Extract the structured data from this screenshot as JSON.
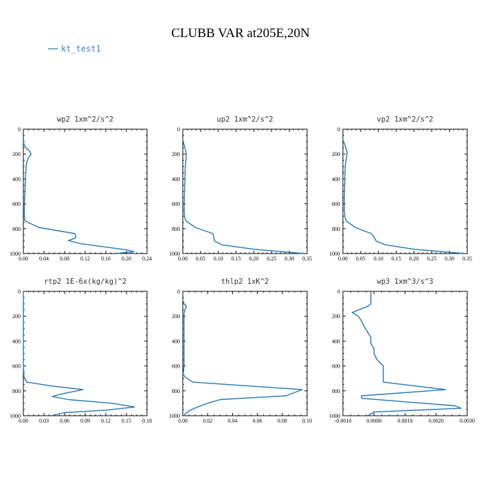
{
  "figure_title": "CLUBB VAR at205E,20N",
  "legend": {
    "label": "kt_test1",
    "color": "#3a86c8"
  },
  "series_color": "#1f77b4",
  "chart_data": [
    {
      "type": "line",
      "title": "wp2  1xm^2/s^2",
      "xlim": [
        0,
        0.24
      ],
      "xticks": [
        "0.00",
        "0.04",
        "0.08",
        "0.12",
        "0.16",
        "0.20",
        "0.24"
      ],
      "ylim": [
        1000,
        0
      ],
      "yticks": [
        "0",
        "200",
        "400",
        "600",
        "800",
        "1000"
      ],
      "x": [
        0.0,
        0.001,
        0.005,
        0.012,
        0.015,
        0.01,
        0.006,
        0.005,
        0.004,
        0.003,
        0.002,
        0.002,
        0.002,
        0.004,
        0.03,
        0.1,
        0.102,
        0.098,
        0.087,
        0.092,
        0.11,
        0.2,
        0.215,
        0.18
      ],
      "y": [
        100,
        120,
        150,
        175,
        200,
        230,
        270,
        330,
        400,
        500,
        600,
        680,
        720,
        740,
        790,
        840,
        870,
        880,
        895,
        900,
        920,
        970,
        985,
        1000
      ]
    },
    {
      "type": "line",
      "title": "up2  1xm^2/s^2",
      "xlim": [
        0,
        0.35
      ],
      "xticks": [
        "0.00",
        "0.05",
        "0.10",
        "0.15",
        "0.20",
        "0.25",
        "0.30",
        "0.35"
      ],
      "ylim": [
        1000,
        0
      ],
      "yticks": [
        "0",
        "200",
        "400",
        "600",
        "800",
        "1000"
      ],
      "x": [
        0.0,
        0.004,
        0.008,
        0.01,
        0.009,
        0.007,
        0.006,
        0.005,
        0.004,
        0.004,
        0.006,
        0.01,
        0.035,
        0.085,
        0.088,
        0.09,
        0.11,
        0.2,
        0.3,
        0.34
      ],
      "y": [
        90,
        130,
        170,
        200,
        240,
        300,
        400,
        500,
        600,
        680,
        720,
        740,
        790,
        840,
        880,
        900,
        930,
        965,
        990,
        1000
      ]
    },
    {
      "type": "line",
      "title": "vp2  1xm^2/s^2",
      "xlim": [
        0,
        0.35
      ],
      "xticks": [
        "0.00",
        "0.05",
        "0.10",
        "0.15",
        "0.20",
        "0.25",
        "0.30",
        "0.35"
      ],
      "ylim": [
        1000,
        0
      ],
      "yticks": [
        "0",
        "200",
        "400",
        "600",
        "800",
        "1000"
      ],
      "x": [
        0.0,
        0.005,
        0.009,
        0.012,
        0.01,
        0.007,
        0.006,
        0.005,
        0.004,
        0.004,
        0.006,
        0.01,
        0.035,
        0.08,
        0.088,
        0.094,
        0.12,
        0.2,
        0.3,
        0.34
      ],
      "y": [
        90,
        120,
        160,
        190,
        230,
        280,
        350,
        450,
        550,
        650,
        710,
        740,
        790,
        840,
        870,
        900,
        930,
        965,
        990,
        1000
      ]
    },
    {
      "type": "line",
      "title": "rtp2  1E-6x(kg/kg)^2",
      "xlim": [
        0,
        0.18
      ],
      "xticks": [
        "0.00",
        "0.03",
        "0.06",
        "0.09",
        "0.12",
        "0.15",
        "0.18"
      ],
      "ylim": [
        1000,
        0
      ],
      "yticks": [
        "0",
        "200",
        "400",
        "600",
        "800",
        "1000"
      ],
      "x": [
        0.0,
        0.0,
        0.0,
        0.001,
        0.005,
        0.04,
        0.087,
        0.06,
        0.042,
        0.065,
        0.13,
        0.162,
        0.12,
        0.06,
        0.04
      ],
      "y": [
        0,
        300,
        600,
        690,
        730,
        760,
        790,
        820,
        845,
        870,
        900,
        930,
        955,
        975,
        1000
      ]
    },
    {
      "type": "line",
      "title": "thlp2  1xK^2",
      "xlim": [
        0,
        0.1
      ],
      "xticks": [
        "0.00",
        "0.02",
        "0.04",
        "0.06",
        "0.08",
        "0.10"
      ],
      "ylim": [
        1000,
        0
      ],
      "yticks": [
        "0",
        "200",
        "400",
        "600",
        "800",
        "1000"
      ],
      "x": [
        0.0,
        0.001,
        0.003,
        0.002,
        0.001,
        0.001,
        0.001,
        0.001,
        0.0005,
        0.0,
        0.002,
        0.008,
        0.096,
        0.083,
        0.03,
        0.02,
        0.012,
        0.005,
        0.002,
        0.001
      ],
      "y": [
        70,
        100,
        120,
        140,
        180,
        300,
        450,
        600,
        650,
        660,
        690,
        730,
        790,
        840,
        870,
        900,
        930,
        960,
        985,
        1000
      ]
    },
    {
      "type": "line",
      "title": "wp3  1xm^3/s^3",
      "xlim": [
        -0.001,
        0.003
      ],
      "xticks": [
        "-0.0010",
        "0.0000",
        "0.0010",
        "0.0020",
        "0.0030"
      ],
      "ylim": [
        1000,
        0
      ],
      "yticks": [
        "0",
        "200",
        "400",
        "600",
        "800",
        "1000"
      ],
      "x": [
        -0.0001,
        -0.0001,
        -0.0002,
        -0.0007,
        -0.0005,
        -0.0004,
        -0.0003,
        -0.0002,
        -0.0001,
        -0.0001,
        0.0,
        0.0,
        0.0001,
        0.0003,
        0.0003,
        0.0023,
        -0.0004,
        -0.0004,
        0.0026,
        0.0028,
        0.0,
        -0.0002
      ],
      "y": [
        0,
        100,
        120,
        170,
        200,
        240,
        290,
        330,
        370,
        420,
        460,
        500,
        550,
        600,
        730,
        790,
        840,
        860,
        920,
        940,
        970,
        1000
      ]
    }
  ]
}
